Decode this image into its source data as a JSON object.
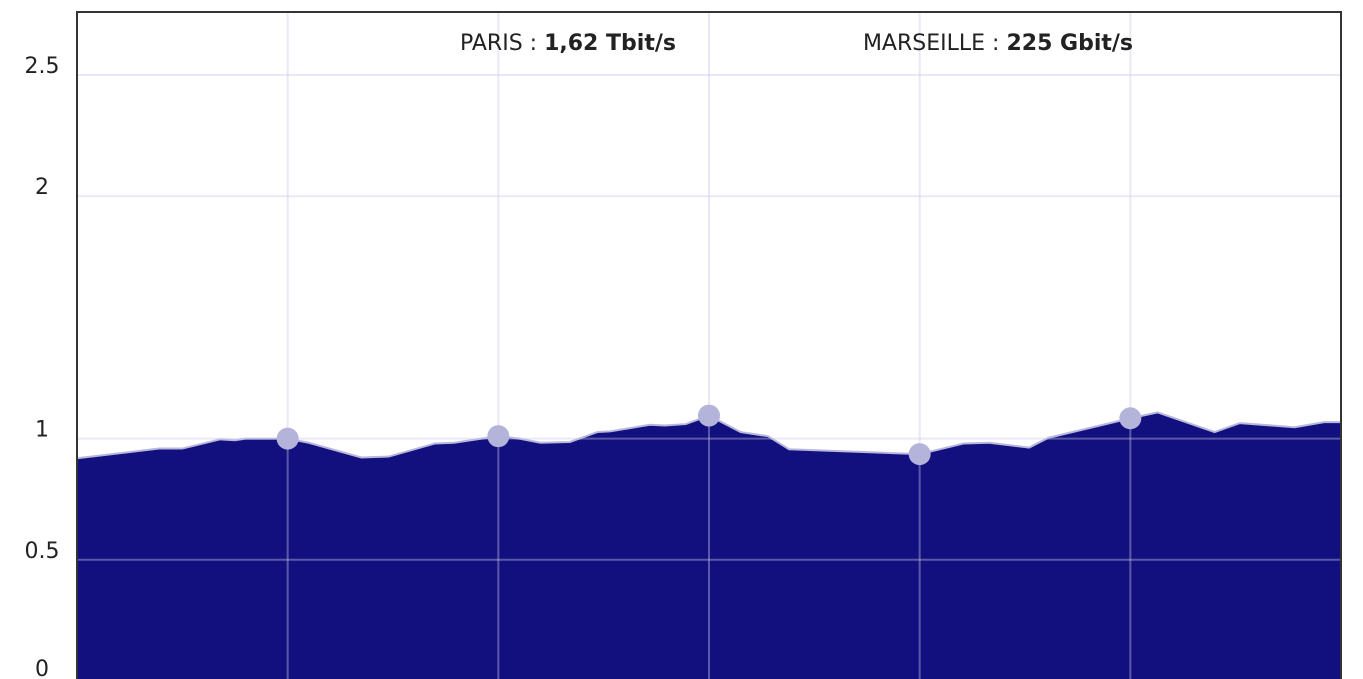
{
  "chart_data": {
    "type": "area",
    "annotations": [
      {
        "label": "PARIS :",
        "value": "1,62 Tbit/s"
      },
      {
        "label": "MARSEILLE :",
        "value": "225 Gbit/s"
      }
    ],
    "x": [
      0,
      0.39,
      0.5,
      0.68,
      0.75,
      0.8,
      0.92,
      1,
      1.1,
      1.35,
      1.48,
      1.7,
      1.79,
      2,
      2.1,
      2.2,
      2.34,
      2.47,
      2.53,
      2.72,
      2.79,
      2.89,
      3,
      3.15,
      3.28,
      3.38,
      4,
      4.21,
      4.33,
      4.52,
      4.61,
      5,
      5.13,
      5.4,
      5.52,
      5.78,
      5.92,
      6
    ],
    "values": [
      0.919,
      0.959,
      0.959,
      0.997,
      0.993,
      1.0,
      1.0,
      1.0,
      0.983,
      0.922,
      0.926,
      0.98,
      0.983,
      1.01,
      1.0,
      0.983,
      0.986,
      1.027,
      1.03,
      1.057,
      1.054,
      1.06,
      1.095,
      1.027,
      1.01,
      0.956,
      0.936,
      0.98,
      0.983,
      0.963,
      1.003,
      1.084,
      1.108,
      1.027,
      1.064,
      1.047,
      1.068,
      1.068
    ],
    "color": "#120f7f",
    "line_color": "#b8b8dc",
    "marker_color": "#b4b4da",
    "xlim": [
      0,
      6
    ],
    "xticks": [
      1,
      2,
      3,
      4,
      5
    ],
    "ylim": [
      0,
      2.76
    ],
    "yticks": [
      0,
      0.5,
      1,
      2,
      2.5
    ],
    "grid": true
  }
}
